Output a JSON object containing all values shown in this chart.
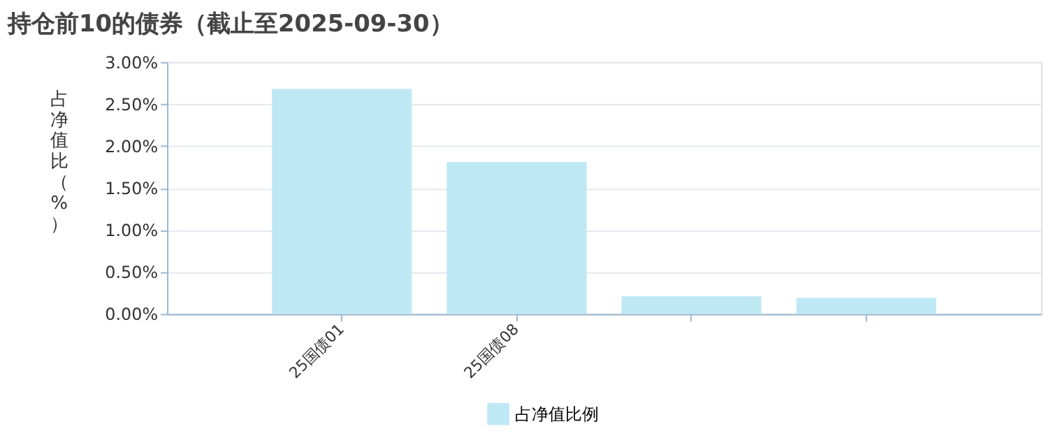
{
  "chart_data": {
    "type": "bar",
    "title": "持仓前10的债券（截止至2025-09-30）",
    "ylabel": "占净值比（%）",
    "categories": [
      "25国债01",
      "25国债08",
      null,
      null
    ],
    "series": [
      {
        "name": "占净值比例",
        "color": "#bfe8f5",
        "values": [
          2.68,
          1.81,
          0.21,
          0.19
        ]
      }
    ],
    "ylim": [
      0,
      3
    ],
    "yticks": [
      {
        "value": 0,
        "label": "0.00%"
      },
      {
        "value": 0.5,
        "label": "0.50%"
      },
      {
        "value": 1,
        "label": "1.00%"
      },
      {
        "value": 1.5,
        "label": "1.50%"
      },
      {
        "value": 2,
        "label": "2.00%"
      },
      {
        "value": 2.5,
        "label": "2.50%"
      },
      {
        "value": 3,
        "label": "3.00%"
      }
    ],
    "grid": "y",
    "legend": "bottom"
  }
}
